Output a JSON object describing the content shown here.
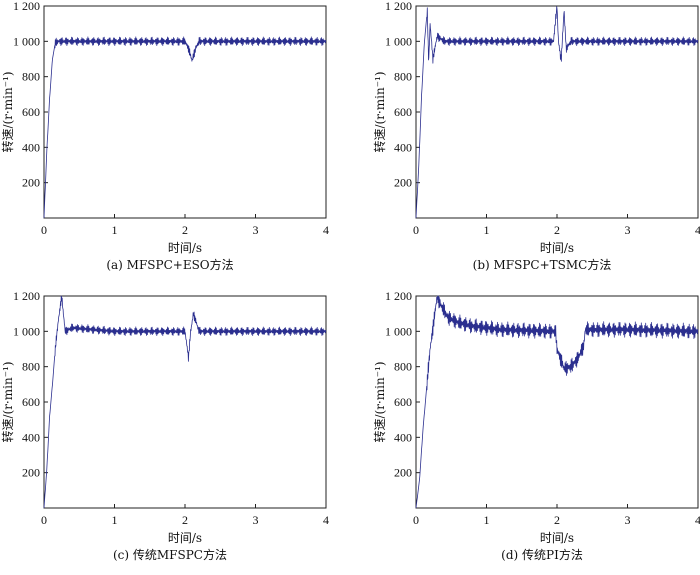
{
  "chart_data": [
    {
      "type": "line",
      "caption": "(a) MFSPC+ESO方法",
      "xlabel": "时间/s",
      "ylabel": "转速/(r·min⁻¹)",
      "xlim": [
        0,
        4
      ],
      "ylim": [
        0,
        1200
      ],
      "xticks": [
        "0",
        "1",
        "2",
        "3",
        "4"
      ],
      "yticks": [
        "200",
        "400",
        "600",
        "800",
        "1 000",
        "1 200"
      ],
      "grid": false,
      "series": [
        {
          "color": "#2b2f8f",
          "x": [
            0,
            0.04,
            0.08,
            0.12,
            0.16,
            0.2,
            0.6,
            1.0,
            1.6,
            2.0,
            2.05,
            2.1,
            2.15,
            2.2,
            3.0,
            4.0
          ],
          "y": [
            0,
            380,
            680,
            900,
            990,
            1000,
            1000,
            1000,
            1000,
            1000,
            960,
            890,
            960,
            1000,
            1000,
            1000
          ],
          "ripple": 25
        }
      ]
    },
    {
      "type": "line",
      "caption": "(b) MFSPC+TSMC方法",
      "xlabel": "时间/s",
      "ylabel": "转速/(r·min⁻¹)",
      "xlim": [
        0,
        4
      ],
      "ylim": [
        0,
        1200
      ],
      "xticks": [
        "0",
        "1",
        "2",
        "3",
        "4"
      ],
      "yticks": [
        "200",
        "400",
        "600",
        "800",
        "1 000",
        "1 200"
      ],
      "grid": false,
      "series": [
        {
          "color": "#2b2f8f",
          "x": [
            0,
            0.04,
            0.08,
            0.12,
            0.16,
            0.18,
            0.2,
            0.24,
            0.3,
            0.4,
            1.0,
            1.95,
            2.0,
            2.02,
            2.06,
            2.1,
            2.13,
            2.2,
            3.0,
            4.0
          ],
          "y": [
            0,
            300,
            700,
            1000,
            1170,
            880,
            1100,
            900,
            1030,
            1000,
            1000,
            1000,
            1200,
            1000,
            890,
            1180,
            960,
            1000,
            1000,
            1000
          ],
          "ripple": 25
        }
      ]
    },
    {
      "type": "line",
      "caption": "(c) 传统MFSPC方法",
      "xlabel": "时间/s",
      "ylabel": "转速/(r·min⁻¹)",
      "xlim": [
        0,
        4
      ],
      "ylim": [
        0,
        1200
      ],
      "xticks": [
        "0",
        "1",
        "2",
        "3",
        "4"
      ],
      "yticks": [
        "200",
        "400",
        "600",
        "800",
        "1 000",
        "1 200"
      ],
      "grid": false,
      "series": [
        {
          "color": "#2b2f8f",
          "x": [
            0,
            0.04,
            0.08,
            0.12,
            0.16,
            0.2,
            0.25,
            0.3,
            0.4,
            1.0,
            2.0,
            2.05,
            2.08,
            2.12,
            2.2,
            3.0,
            4.0
          ],
          "y": [
            0,
            220,
            520,
            700,
            900,
            1050,
            1200,
            1000,
            1020,
            1000,
            1000,
            850,
            1000,
            1100,
            1000,
            1000,
            1000
          ],
          "ripple": 25
        }
      ]
    },
    {
      "type": "line",
      "caption": "(d) 传统PI方法",
      "xlabel": "时间/s",
      "ylabel": "转速/(r·min⁻¹)",
      "xlim": [
        0,
        4
      ],
      "ylim": [
        0,
        1200
      ],
      "xticks": [
        "0",
        "1",
        "2",
        "3",
        "4"
      ],
      "yticks": [
        "200",
        "400",
        "600",
        "800",
        "1 000",
        "1 200"
      ],
      "grid": false,
      "series": [
        {
          "color": "#2b2f8f",
          "x": [
            0,
            0.05,
            0.1,
            0.2,
            0.3,
            0.35,
            0.45,
            0.6,
            0.8,
            1.2,
            1.98,
            2.0,
            2.1,
            2.2,
            2.3,
            2.38,
            2.4,
            3.0,
            4.0
          ],
          "y": [
            0,
            160,
            450,
            900,
            1200,
            1150,
            1080,
            1050,
            1030,
            1010,
            1000,
            900,
            790,
            800,
            850,
            920,
            1010,
            1010,
            1000
          ],
          "ripple": 45
        }
      ]
    }
  ]
}
